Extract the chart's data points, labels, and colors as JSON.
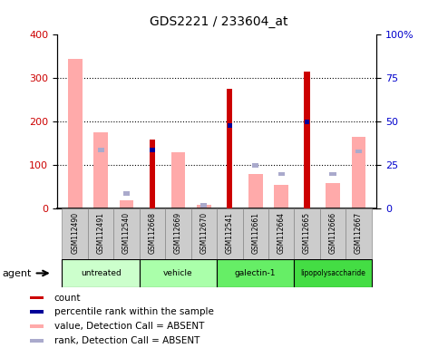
{
  "title": "GDS2221 / 233604_at",
  "samples": [
    "GSM112490",
    "GSM112491",
    "GSM112540",
    "GSM112668",
    "GSM112669",
    "GSM112670",
    "GSM112541",
    "GSM112661",
    "GSM112664",
    "GSM112665",
    "GSM112666",
    "GSM112667"
  ],
  "groups": [
    {
      "label": "untreated",
      "indices": [
        0,
        1,
        2
      ],
      "color": "#ccffcc"
    },
    {
      "label": "vehicle",
      "indices": [
        3,
        4,
        5
      ],
      "color": "#aaffaa"
    },
    {
      "label": "galectin-1",
      "indices": [
        6,
        7,
        8
      ],
      "color": "#66ee66"
    },
    {
      "label": "lipopolysaccharide",
      "indices": [
        9,
        10,
        11
      ],
      "color": "#44dd44"
    }
  ],
  "count_values": [
    null,
    null,
    null,
    160,
    null,
    null,
    275,
    null,
    null,
    315,
    null,
    null
  ],
  "rank_pct": [
    null,
    null,
    null,
    34,
    null,
    null,
    48,
    null,
    null,
    50,
    null,
    null
  ],
  "absent_value_bars": [
    345,
    175,
    20,
    null,
    130,
    10,
    null,
    80,
    55,
    null,
    60,
    165
  ],
  "absent_rank_pct": [
    null,
    34,
    9,
    null,
    null,
    2,
    null,
    25,
    20,
    null,
    20,
    33
  ],
  "ylim_left": [
    0,
    400
  ],
  "ylim_right": [
    0,
    100
  ],
  "yticks_left": [
    0,
    100,
    200,
    300,
    400
  ],
  "yticks_right": [
    0,
    25,
    50,
    75,
    100
  ],
  "ytick_labels_right": [
    "0",
    "25",
    "50",
    "75",
    "100%"
  ],
  "count_color": "#cc0000",
  "rank_color": "#000099",
  "absent_value_color": "#ffaaaa",
  "absent_rank_color": "#aaaacc",
  "square_size": 12
}
